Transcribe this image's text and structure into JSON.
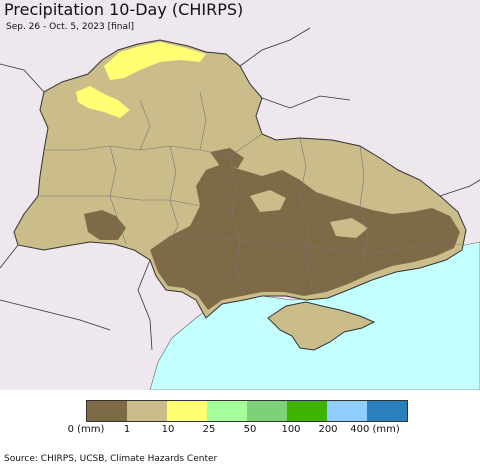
{
  "header": {
    "title": "Precipitation 10-Day (CHIRPS)",
    "subtitle": "Sep. 26 - Oct. 5, 2023 [final]"
  },
  "legend": {
    "colors": [
      "#7f6a48",
      "#cbbd89",
      "#ffff73",
      "#a5ff9b",
      "#7dd277",
      "#3fb400",
      "#8fcdff",
      "#2a7fbf"
    ],
    "ticks": [
      "0 (mm)",
      "1",
      "10",
      "25",
      "50",
      "100",
      "200",
      "400 (mm)"
    ]
  },
  "footer": {
    "source": "Source: CHIRPS, UCSB, Climate Hazards Center"
  },
  "map_colors": {
    "background": "#eee7ee",
    "sea": "#c4ffff",
    "light_precip": "#cbbd89",
    "dry": "#7f6a48",
    "wet": "#ffff73"
  }
}
